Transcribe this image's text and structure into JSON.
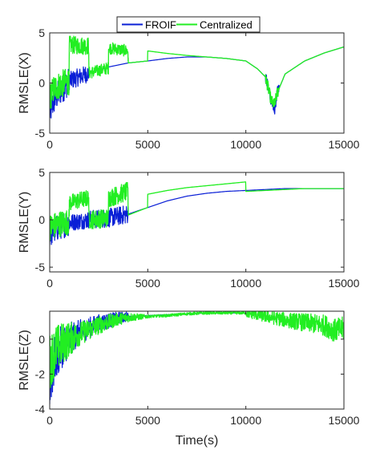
{
  "colors": {
    "froif": "#0a1fd6",
    "centralized": "#22ee22",
    "axis": "#262626",
    "background": "#ffffff"
  },
  "chart_data": [
    {
      "type": "line",
      "id": "x",
      "ylabel": "RMSLE(X)",
      "xlabel": "",
      "xlim": [
        0,
        15000
      ],
      "ylim": [
        -5,
        5
      ],
      "xticks": [
        0,
        5000,
        10000,
        15000
      ],
      "yticks": [
        -5,
        0,
        5
      ],
      "grid": false,
      "legend": {
        "placement": "top-center",
        "entries": [
          "FROIF",
          "Centralized"
        ]
      },
      "series": [
        {
          "name": "FROIF",
          "color_key": "froif",
          "noise_until": 2000,
          "points": [
            [
              0,
              -3.0
            ],
            [
              200,
              -1.8
            ],
            [
              500,
              -0.9
            ],
            [
              1000,
              0.2
            ],
            [
              2000,
              1.0
            ],
            [
              3000,
              1.6
            ],
            [
              4000,
              2.0
            ],
            [
              5000,
              2.2
            ],
            [
              6000,
              2.45
            ],
            [
              7000,
              2.6
            ],
            [
              8000,
              2.6
            ],
            [
              9000,
              2.45
            ],
            [
              10000,
              2.2
            ],
            [
              10600,
              1.4
            ],
            [
              11000,
              0.6
            ],
            [
              11300,
              -1.8
            ],
            [
              11450,
              -2.8
            ],
            [
              11600,
              -1.0
            ],
            [
              12000,
              0.9
            ],
            [
              13000,
              2.2
            ],
            [
              14000,
              3.0
            ],
            [
              15000,
              3.6
            ]
          ]
        },
        {
          "name": "Centralized",
          "color_key": "centralized",
          "noise_until": 4000,
          "points": [
            [
              0,
              -1.5
            ],
            [
              200,
              -0.6
            ],
            [
              500,
              -0.2
            ],
            [
              990,
              0.2
            ],
            [
              1000,
              3.8
            ],
            [
              1990,
              3.7
            ],
            [
              2000,
              1.0
            ],
            [
              2990,
              1.5
            ],
            [
              3000,
              3.5
            ],
            [
              3990,
              3.2
            ],
            [
              4000,
              2.0
            ],
            [
              4990,
              2.2
            ],
            [
              5000,
              3.2
            ],
            [
              6000,
              2.95
            ],
            [
              7000,
              2.75
            ],
            [
              8000,
              2.6
            ],
            [
              9000,
              2.45
            ],
            [
              10000,
              2.2
            ],
            [
              10600,
              1.4
            ],
            [
              11000,
              0.6
            ],
            [
              11300,
              -1.8
            ],
            [
              11450,
              -2.2
            ],
            [
              11600,
              -1.0
            ],
            [
              12000,
              0.9
            ],
            [
              13000,
              2.2
            ],
            [
              14000,
              3.0
            ],
            [
              15000,
              3.6
            ]
          ]
        }
      ]
    },
    {
      "type": "line",
      "id": "y",
      "ylabel": "RMSLE(Y)",
      "xlabel": "",
      "xlim": [
        0,
        15000
      ],
      "ylim": [
        -5.5,
        5
      ],
      "xticks": [
        0,
        5000,
        10000,
        15000
      ],
      "yticks": [
        -5,
        0,
        5
      ],
      "grid": false,
      "series": [
        {
          "name": "FROIF",
          "color_key": "froif",
          "noise_until": 4000,
          "points": [
            [
              0,
              -1.5
            ],
            [
              500,
              -0.7
            ],
            [
              1000,
              -0.3
            ],
            [
              2000,
              0.0
            ],
            [
              3000,
              0.2
            ],
            [
              4000,
              0.6
            ],
            [
              5000,
              1.3
            ],
            [
              6000,
              2.0
            ],
            [
              7000,
              2.5
            ],
            [
              8000,
              2.8
            ],
            [
              9000,
              3.0
            ],
            [
              10000,
              3.1
            ],
            [
              11000,
              3.2
            ],
            [
              12000,
              3.3
            ],
            [
              13000,
              3.3
            ],
            [
              14000,
              3.3
            ],
            [
              15000,
              3.3
            ]
          ]
        },
        {
          "name": "Centralized",
          "color_key": "centralized",
          "noise_until": 4000,
          "points": [
            [
              0,
              -0.8
            ],
            [
              500,
              -0.4
            ],
            [
              990,
              -0.2
            ],
            [
              1000,
              1.8
            ],
            [
              1990,
              2.3
            ],
            [
              2000,
              0.0
            ],
            [
              2990,
              0.2
            ],
            [
              3000,
              2.3
            ],
            [
              3990,
              3.0
            ],
            [
              4000,
              0.5
            ],
            [
              4990,
              1.3
            ],
            [
              5000,
              2.7
            ],
            [
              6000,
              3.1
            ],
            [
              7000,
              3.4
            ],
            [
              8000,
              3.6
            ],
            [
              9000,
              3.8
            ],
            [
              9990,
              4.0
            ],
            [
              10000,
              3.0
            ],
            [
              11000,
              3.1
            ],
            [
              12000,
              3.2
            ],
            [
              13000,
              3.3
            ],
            [
              14000,
              3.3
            ],
            [
              15000,
              3.3
            ]
          ]
        }
      ]
    },
    {
      "type": "line",
      "id": "z",
      "ylabel": "RMSLE(Z)",
      "xlabel": "Time(s)",
      "xlim": [
        0,
        15000
      ],
      "ylim": [
        -4,
        1.6
      ],
      "xticks": [
        0,
        5000,
        10000,
        15000
      ],
      "yticks": [
        -4,
        -2,
        0
      ],
      "grid": false,
      "series": [
        {
          "name": "FROIF",
          "color_key": "froif",
          "noise_until": 4000,
          "points": [
            [
              0,
              -2.5
            ],
            [
              300,
              -1.0
            ],
            [
              700,
              -0.3
            ],
            [
              1500,
              0.4
            ],
            [
              2500,
              0.9
            ],
            [
              3500,
              1.2
            ],
            [
              4000,
              1.3
            ],
            [
              5000,
              1.35
            ],
            [
              6000,
              1.4
            ],
            [
              7000,
              1.45
            ],
            [
              8000,
              1.5
            ],
            [
              9000,
              1.5
            ],
            [
              10000,
              1.5
            ]
          ]
        },
        {
          "name": "Centralized",
          "color_key": "centralized",
          "noise_until": 15000,
          "points": [
            [
              0,
              -1.3
            ],
            [
              300,
              -0.6
            ],
            [
              700,
              -0.2
            ],
            [
              1500,
              0.3
            ],
            [
              2500,
              0.8
            ],
            [
              3500,
              1.15
            ],
            [
              4000,
              1.25
            ],
            [
              5000,
              1.3
            ],
            [
              6000,
              1.35
            ],
            [
              7000,
              1.45
            ],
            [
              8000,
              1.5
            ],
            [
              9000,
              1.5
            ],
            [
              10000,
              1.5
            ],
            [
              11000,
              1.3
            ],
            [
              12000,
              1.1
            ],
            [
              13000,
              0.95
            ],
            [
              14000,
              0.8
            ],
            [
              14500,
              0.5
            ],
            [
              15000,
              0.6
            ]
          ]
        }
      ]
    }
  ]
}
